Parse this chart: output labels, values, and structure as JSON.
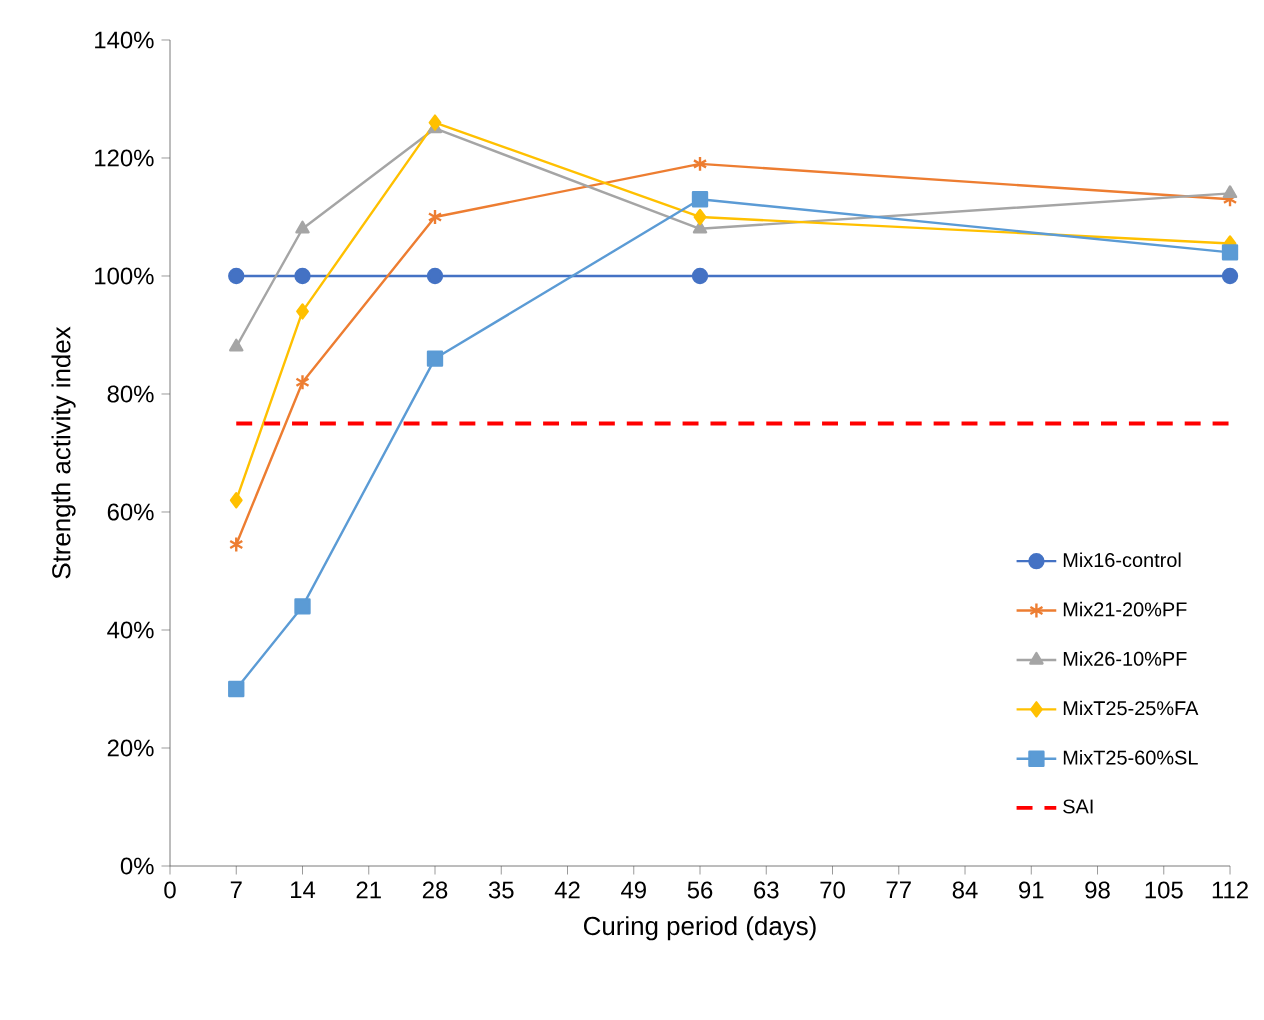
{
  "chart_data": {
    "type": "line",
    "xlabel": "Curing period (days)",
    "ylabel": "Strength activity index",
    "xlim": [
      0,
      112
    ],
    "xticks": [
      0,
      7,
      14,
      21,
      28,
      35,
      42,
      49,
      56,
      63,
      70,
      77,
      84,
      91,
      98,
      105,
      112
    ],
    "ylim": [
      0,
      140
    ],
    "yticks": [
      {
        "value": 0,
        "label": "0%"
      },
      {
        "value": 20,
        "label": "20%"
      },
      {
        "value": 40,
        "label": "40%"
      },
      {
        "value": 60,
        "label": "60%"
      },
      {
        "value": 80,
        "label": "80%"
      },
      {
        "value": 100,
        "label": "100%"
      },
      {
        "value": 120,
        "label": "120%"
      },
      {
        "value": 140,
        "label": "140%"
      }
    ],
    "x": [
      7,
      14,
      28,
      56,
      112
    ],
    "series": [
      {
        "name": "Mix16-control",
        "color": "#4472c4",
        "marker": "circle",
        "values": [
          100,
          100,
          100,
          100,
          100
        ]
      },
      {
        "name": "Mix21-20%PF",
        "color": "#ed7d31",
        "marker": "cross",
        "values": [
          54.5,
          82,
          110,
          119,
          113
        ]
      },
      {
        "name": "Mix26-10%PF",
        "color": "#a5a5a5",
        "marker": "triangle",
        "values": [
          88,
          108,
          125,
          108,
          114
        ]
      },
      {
        "name": "MixT25-25%FA",
        "color": "#ffc000",
        "marker": "diamond",
        "values": [
          62,
          94,
          126,
          110,
          105.5
        ]
      },
      {
        "name": "MixT25-60%SL",
        "color": "#5b9bd5",
        "marker": "square",
        "values": [
          30,
          44,
          86,
          113,
          104
        ]
      }
    ],
    "ref_lines": [
      {
        "axis": "y",
        "value": 75,
        "label": "SAI",
        "color": "#ff0000",
        "line_style": "dashed"
      }
    ],
    "legend": "bottom right",
    "grid": false
  }
}
